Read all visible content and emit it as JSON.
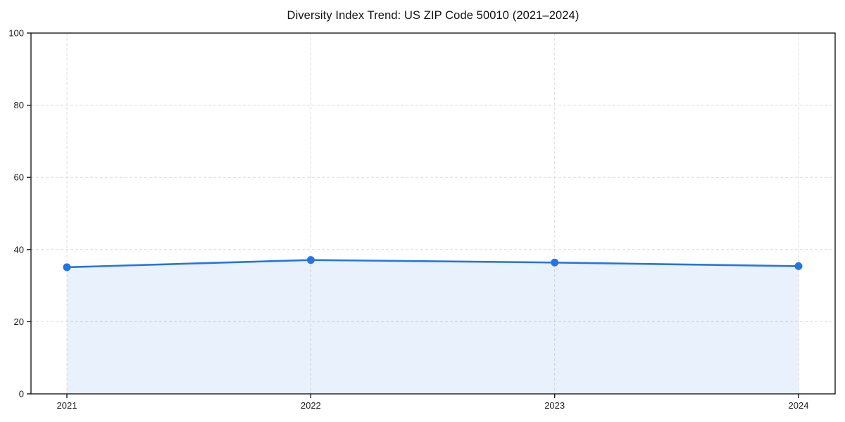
{
  "chart_data": {
    "type": "area",
    "title": "Diversity Index Trend: US ZIP Code 50010 (2021–2024)",
    "categories": [
      "2021",
      "2022",
      "2023",
      "2024"
    ],
    "values": [
      35.1,
      37.1,
      36.4,
      35.4
    ],
    "xlabel": "",
    "ylabel": "",
    "ylim": [
      0,
      100
    ],
    "yticks": [
      0,
      20,
      40,
      60,
      80,
      100
    ],
    "grid": "dashed",
    "grid_axes": "both",
    "legend": "none",
    "markers": "circle",
    "colors": {
      "line": "#2575e0",
      "marker": "#2575e0",
      "fill": "#2575e0",
      "fill_opacity": 0.1,
      "grid": "#dcdcdc",
      "spine": "#1a1a1a",
      "tick_text": "#1a1a1a",
      "background": "#ffffff"
    }
  }
}
